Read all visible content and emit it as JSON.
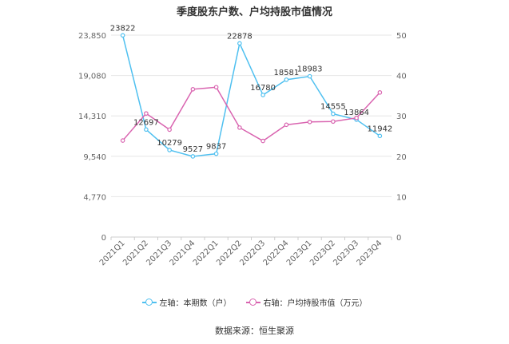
{
  "title": "季度股东户数、户均持股市值情况",
  "source": "数据来源：恒生聚源",
  "legend": {
    "left_label": "左轴：本期数（户）",
    "right_label": "右轴：户均持股市值（万元）"
  },
  "colors": {
    "left_series": "#4FC0F0",
    "right_series": "#D964B0",
    "grid": "#e6e6e6",
    "axis_text": "#666666"
  },
  "chart_data": {
    "type": "line",
    "categories": [
      "2021Q1",
      "2021Q2",
      "2021Q3",
      "2021Q4",
      "2022Q1",
      "2022Q2",
      "2022Q3",
      "2022Q4",
      "2023Q1",
      "2023Q2",
      "2023Q3",
      "2023Q4"
    ],
    "left_axis": {
      "ylim": [
        0,
        23850
      ],
      "ticks": [
        0,
        4770,
        9540,
        14310,
        19080,
        23850
      ],
      "tick_labels": [
        "0",
        "4,770",
        "9,540",
        "14,310",
        "19,080",
        "23,850"
      ]
    },
    "right_axis": {
      "ylim": [
        0,
        50
      ],
      "ticks": [
        0,
        10,
        20,
        30,
        40,
        50
      ],
      "tick_labels": [
        "0",
        "10",
        "20",
        "30",
        "40",
        "50"
      ]
    },
    "series": [
      {
        "name": "本期数（户）",
        "axis": "left",
        "values": [
          23822,
          12697,
          10279,
          9527,
          9837,
          22878,
          16780,
          18581,
          18983,
          14555,
          13864,
          11942
        ],
        "labels": [
          "23822",
          "12697",
          "10279",
          "9527",
          "9837",
          "22878",
          "16780",
          "18581",
          "18983",
          "14555",
          "13864",
          "11942"
        ]
      },
      {
        "name": "户均持股市值（万元）",
        "axis": "right",
        "values": [
          23.9,
          30.6,
          26.6,
          36.6,
          37.1,
          27.1,
          23.8,
          27.8,
          28.5,
          28.6,
          29.5,
          35.8
        ]
      }
    ]
  }
}
